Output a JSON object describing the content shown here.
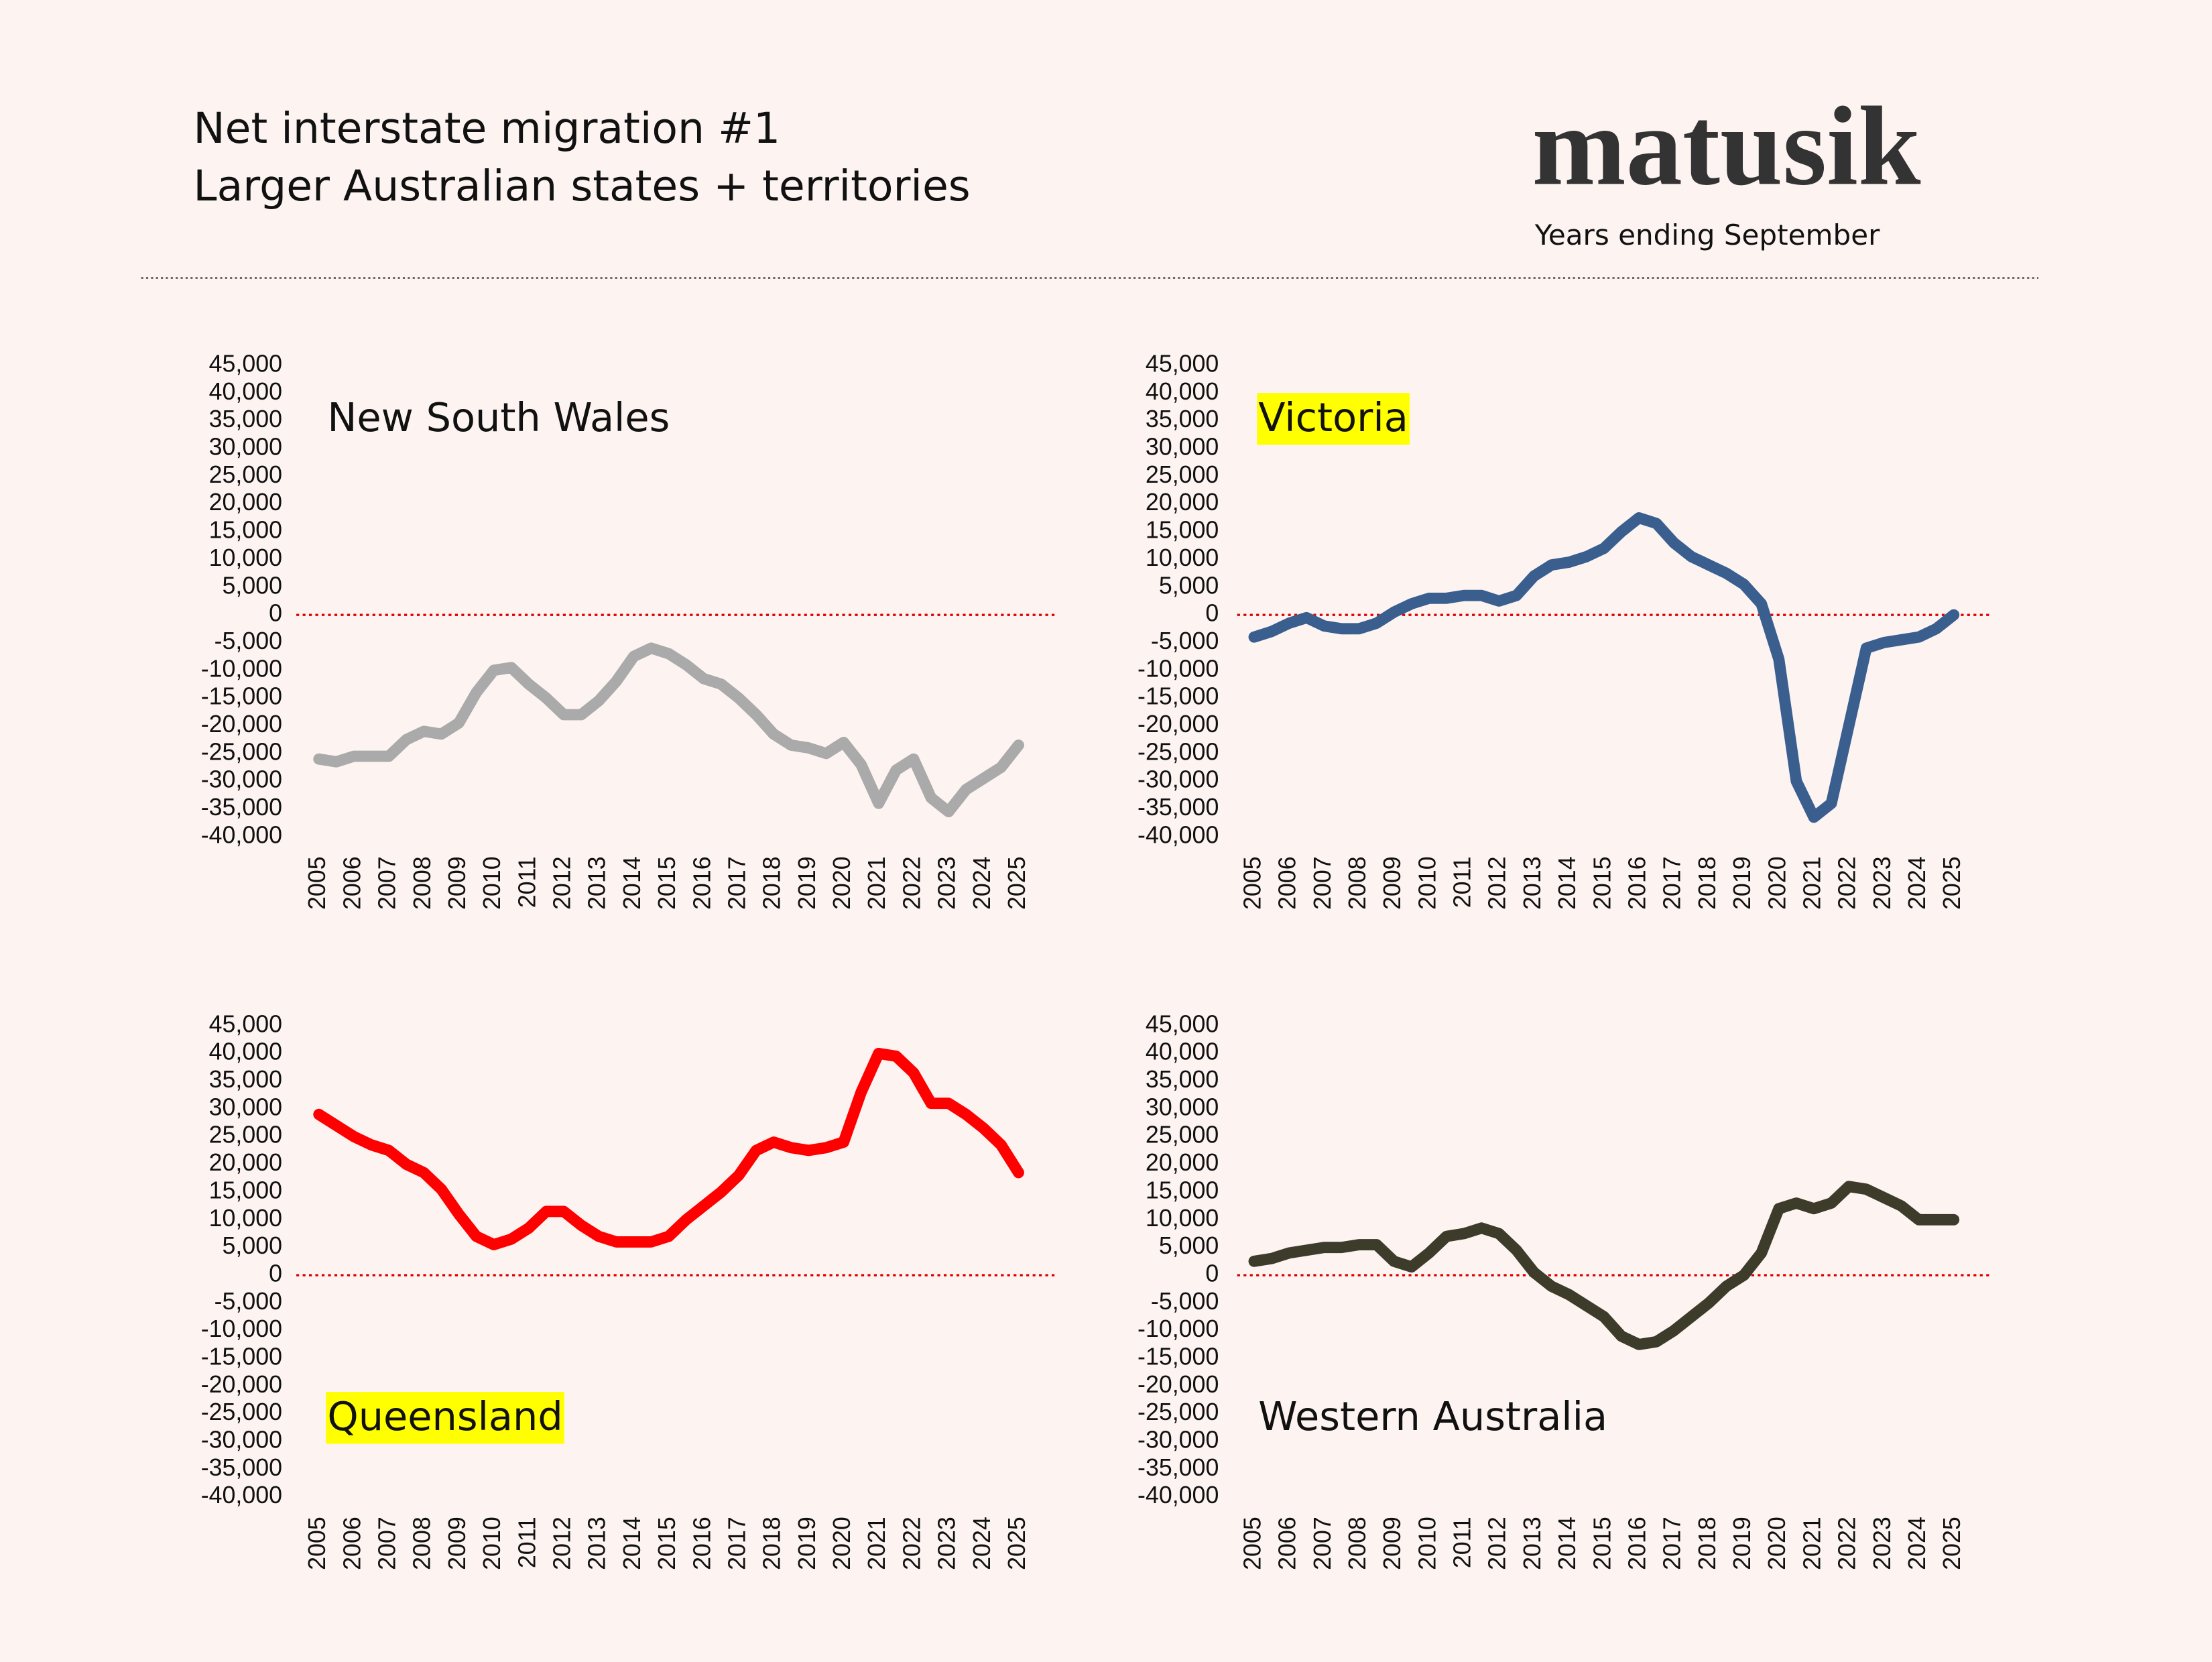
{
  "header": {
    "title": "Net interstate migration #1",
    "subtitle": "Larger Australian states + territories",
    "brand": "matusik",
    "note": "Years ending September"
  },
  "chart_data": [
    {
      "type": "line",
      "title": "New South Wales",
      "title_position": "top",
      "color": "#aaaaaa",
      "x": [
        2005,
        2005.5,
        2006,
        2006.5,
        2007,
        2007.5,
        2008,
        2008.5,
        2009,
        2009.5,
        2010,
        2010.5,
        2011,
        2011.5,
        2012,
        2012.5,
        2013,
        2013.5,
        2014,
        2014.5,
        2015,
        2015.5,
        2016,
        2016.5,
        2017,
        2017.5,
        2018,
        2018.5,
        2019,
        2019.5,
        2020,
        2020.5,
        2021,
        2021.5,
        2022,
        2022.5,
        2023,
        2023.5,
        2024,
        2024.5,
        2025
      ],
      "values": [
        -26000,
        -26500,
        -25500,
        -25500,
        -25500,
        -22500,
        -21000,
        -21500,
        -19500,
        -14000,
        -10000,
        -9500,
        -12500,
        -15000,
        -18000,
        -18000,
        -15500,
        -12000,
        -7500,
        -6000,
        -7000,
        -9000,
        -11500,
        -12500,
        -15000,
        -18000,
        -21500,
        -23500,
        -24000,
        -25000,
        -23000,
        -27000,
        -34000,
        -28000,
        -26000,
        -33000,
        -35500,
        -31500,
        -29500,
        -27500,
        -23500
      ],
      "xlim": [
        2005,
        2025
      ],
      "xticks": [
        2005,
        2006,
        2007,
        2008,
        2009,
        2010,
        2011,
        2012,
        2013,
        2014,
        2015,
        2016,
        2017,
        2018,
        2019,
        2020,
        2021,
        2022,
        2023,
        2024,
        2025
      ],
      "ylim": [
        -40000,
        45000
      ],
      "yticks": [
        {
          "value": 45000,
          "label": "45,000"
        },
        {
          "value": 40000,
          "label": "40,000"
        },
        {
          "value": 35000,
          "label": "35,000"
        },
        {
          "value": 30000,
          "label": "30,000"
        },
        {
          "value": 25000,
          "label": "25,000"
        },
        {
          "value": 20000,
          "label": "20,000"
        },
        {
          "value": 15000,
          "label": "15,000"
        },
        {
          "value": 10000,
          "label": "10,000"
        },
        {
          "value": 5000,
          "label": "5,000"
        },
        0,
        {
          "value": -5000,
          "label": "-5,000"
        },
        {
          "value": -10000,
          "label": "-10,000"
        },
        {
          "value": -15000,
          "label": "-15,000"
        },
        {
          "value": -20000,
          "label": "-20,000"
        },
        {
          "value": -25000,
          "label": "-25,000"
        },
        {
          "value": -30000,
          "label": "-30,000"
        },
        {
          "value": -35000,
          "label": "-35,000"
        },
        {
          "value": -40000,
          "label": "-40,000"
        }
      ],
      "hline": {
        "value": 0,
        "color": "#e00000"
      }
    },
    {
      "type": "line",
      "title": "Victoria",
      "title_position": "top",
      "title_background": "#ffff00",
      "color": "#3a5f8f",
      "x": [
        2005,
        2005.5,
        2006,
        2006.5,
        2007,
        2007.5,
        2008,
        2008.5,
        2009,
        2009.5,
        2010,
        2010.5,
        2011,
        2011.5,
        2012,
        2012.5,
        2013,
        2013.5,
        2014,
        2014.5,
        2015,
        2015.5,
        2016,
        2016.5,
        2017,
        2017.5,
        2018,
        2018.5,
        2019,
        2019.5,
        2020,
        2020.5,
        2021,
        2021.5,
        2022,
        2022.5,
        2023,
        2023.5,
        2024,
        2024.5,
        2025
      ],
      "values": [
        -4000,
        -3000,
        -1500,
        -500,
        -2000,
        -2500,
        -2500,
        -1500,
        500,
        2000,
        3000,
        3000,
        3500,
        3500,
        2500,
        3500,
        7000,
        9000,
        9500,
        10500,
        12000,
        15000,
        17500,
        16500,
        13000,
        10500,
        9000,
        7500,
        5500,
        2000,
        -8000,
        -30000,
        -36500,
        -34000,
        -20000,
        -6000,
        -5000,
        -4500,
        -4000,
        -2500,
        0
      ],
      "xlim": [
        2005,
        2025
      ],
      "xticks": [
        2005,
        2006,
        2007,
        2008,
        2009,
        2010,
        2011,
        2012,
        2013,
        2014,
        2015,
        2016,
        2017,
        2018,
        2019,
        2020,
        2021,
        2022,
        2023,
        2024,
        2025
      ],
      "ylim": [
        -40000,
        45000
      ],
      "yticks": [
        {
          "value": 45000,
          "label": "45,000"
        },
        {
          "value": 40000,
          "label": "40,000"
        },
        {
          "value": 35000,
          "label": "35,000"
        },
        {
          "value": 30000,
          "label": "30,000"
        },
        {
          "value": 25000,
          "label": "25,000"
        },
        {
          "value": 20000,
          "label": "20,000"
        },
        {
          "value": 15000,
          "label": "15,000"
        },
        {
          "value": 10000,
          "label": "10,000"
        },
        {
          "value": 5000,
          "label": "5,000"
        },
        0,
        {
          "value": -5000,
          "label": "-5,000"
        },
        {
          "value": -10000,
          "label": "-10,000"
        },
        {
          "value": -15000,
          "label": "-15,000"
        },
        {
          "value": -20000,
          "label": "-20,000"
        },
        {
          "value": -25000,
          "label": "-25,000"
        },
        {
          "value": -30000,
          "label": "-30,000"
        },
        {
          "value": -35000,
          "label": "-35,000"
        },
        {
          "value": -40000,
          "label": "-40,000"
        }
      ],
      "hline": {
        "value": 0,
        "color": "#e00000"
      }
    },
    {
      "type": "line",
      "title": "Queensland",
      "title_position": "bottom",
      "title_background": "#ffff00",
      "color": "#ff0000",
      "x": [
        2005,
        2005.5,
        2006,
        2006.5,
        2007,
        2007.5,
        2008,
        2008.5,
        2009,
        2009.5,
        2010,
        2010.5,
        2011,
        2011.5,
        2012,
        2012.5,
        2013,
        2013.5,
        2014,
        2014.5,
        2015,
        2015.5,
        2016,
        2016.5,
        2017,
        2017.5,
        2018,
        2018.5,
        2019,
        2019.5,
        2020,
        2020.5,
        2021,
        2021.5,
        2022,
        2022.5,
        2023,
        2023.5,
        2024,
        2024.5,
        2025
      ],
      "values": [
        29000,
        27000,
        25000,
        23500,
        22500,
        20000,
        18500,
        15500,
        11000,
        7000,
        5500,
        6500,
        8500,
        11500,
        11500,
        9000,
        7000,
        6000,
        6000,
        6000,
        7000,
        10000,
        12500,
        15000,
        18000,
        22500,
        24000,
        23000,
        22500,
        23000,
        24000,
        33000,
        40000,
        39500,
        36500,
        31000,
        31000,
        29000,
        26500,
        23500,
        18500
      ],
      "xlim": [
        2005,
        2025
      ],
      "xticks": [
        2005,
        2006,
        2007,
        2008,
        2009,
        2010,
        2011,
        2012,
        2013,
        2014,
        2015,
        2016,
        2017,
        2018,
        2019,
        2020,
        2021,
        2022,
        2023,
        2024,
        2025
      ],
      "ylim": [
        -40000,
        45000
      ],
      "yticks": [
        {
          "value": 45000,
          "label": "45,000"
        },
        {
          "value": 40000,
          "label": "40,000"
        },
        {
          "value": 35000,
          "label": "35,000"
        },
        {
          "value": 30000,
          "label": "30,000"
        },
        {
          "value": 25000,
          "label": "25,000"
        },
        {
          "value": 20000,
          "label": "20,000"
        },
        {
          "value": 15000,
          "label": "15,000"
        },
        {
          "value": 10000,
          "label": "10,000"
        },
        {
          "value": 5000,
          "label": "5,000"
        },
        0,
        {
          "value": -5000,
          "label": "-5,000"
        },
        {
          "value": -10000,
          "label": "-10,000"
        },
        {
          "value": -15000,
          "label": "-15,000"
        },
        {
          "value": -20000,
          "label": "-20,000"
        },
        {
          "value": -25000,
          "label": "-25,000"
        },
        {
          "value": -30000,
          "label": "-30,000"
        },
        {
          "value": -35000,
          "label": "-35,000"
        },
        {
          "value": -40000,
          "label": "-40,000"
        }
      ],
      "hline": {
        "value": 0,
        "color": "#e00000"
      }
    },
    {
      "type": "line",
      "title": "Western Australia",
      "title_position": "bottom",
      "color": "#3d3b2a",
      "x": [
        2005,
        2005.5,
        2006,
        2006.5,
        2007,
        2007.5,
        2008,
        2008.5,
        2009,
        2009.5,
        2010,
        2010.5,
        2011,
        2011.5,
        2012,
        2012.5,
        2013,
        2013.5,
        2014,
        2014.5,
        2015,
        2015.5,
        2016,
        2016.5,
        2017,
        2017.5,
        2018,
        2018.5,
        2019,
        2019.5,
        2020,
        2020.5,
        2021,
        2021.5,
        2022,
        2022.5,
        2023,
        2023.5,
        2024,
        2024.5,
        2025
      ],
      "values": [
        2500,
        3000,
        4000,
        4500,
        5000,
        5000,
        5500,
        5500,
        2500,
        1500,
        4000,
        7000,
        7500,
        8500,
        7500,
        4500,
        500,
        -2000,
        -3500,
        -5500,
        -7500,
        -11000,
        -12500,
        -12000,
        -10000,
        -7500,
        -5000,
        -2000,
        0,
        4000,
        12000,
        13000,
        12000,
        13000,
        16000,
        15500,
        14000,
        12500,
        10000,
        10000,
        10000
      ],
      "xlim": [
        2005,
        2025
      ],
      "xticks": [
        2005,
        2006,
        2007,
        2008,
        2009,
        2010,
        2011,
        2012,
        2013,
        2014,
        2015,
        2016,
        2017,
        2018,
        2019,
        2020,
        2021,
        2022,
        2023,
        2024,
        2025
      ],
      "ylim": [
        -40000,
        45000
      ],
      "yticks": [
        {
          "value": 45000,
          "label": "45,000"
        },
        {
          "value": 40000,
          "label": "40,000"
        },
        {
          "value": 35000,
          "label": "35,000"
        },
        {
          "value": 30000,
          "label": "30,000"
        },
        {
          "value": 25000,
          "label": "25,000"
        },
        {
          "value": 20000,
          "label": "20,000"
        },
        {
          "value": 15000,
          "label": "15,000"
        },
        {
          "value": 10000,
          "label": "10,000"
        },
        {
          "value": 5000,
          "label": "5,000"
        },
        0,
        {
          "value": -5000,
          "label": "-5,000"
        },
        {
          "value": -10000,
          "label": "-10,000"
        },
        {
          "value": -15000,
          "label": "-15,000"
        },
        {
          "value": -20000,
          "label": "-20,000"
        },
        {
          "value": -25000,
          "label": "-25,000"
        },
        {
          "value": -30000,
          "label": "-30,000"
        },
        {
          "value": -35000,
          "label": "-35,000"
        },
        {
          "value": -40000,
          "label": "-40,000"
        }
      ],
      "hline": {
        "value": 0,
        "color": "#e00000"
      }
    }
  ]
}
